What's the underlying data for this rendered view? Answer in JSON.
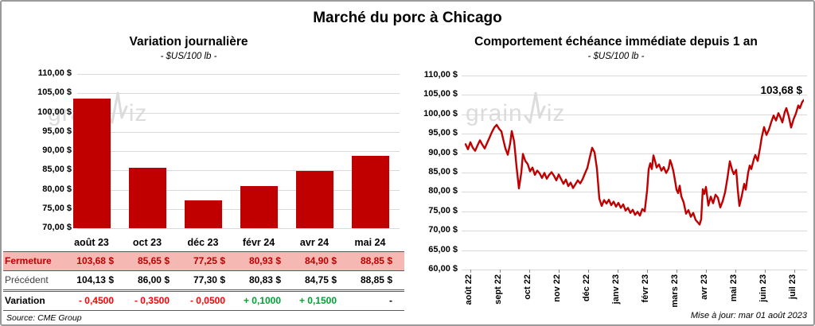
{
  "header": {
    "title": "Marché du porc à Chicago"
  },
  "watermark": {
    "prefix": "grain",
    "suffix": "iz"
  },
  "notes": {
    "source": "Source: CME Group",
    "updated": "Mise à jour: mar 01 août 2023"
  },
  "colors": {
    "series_red": "#C00000",
    "fermeture_text": "#C00000",
    "fermeture_bg": "#F6B8B2",
    "negative": "#FF0000",
    "positive": "#00A033",
    "gridline": "#D9D9D9",
    "rule": "#595959",
    "precedent_label": "#404040"
  },
  "chart_data": [
    {
      "type": "bar",
      "title": "Variation  journalière",
      "subtitle": "- $US/100 lb -",
      "unit": "$US/100 lb",
      "categories": [
        "août 23",
        "oct 23",
        "déc 23",
        "févr 24",
        "avr 24",
        "mai 24"
      ],
      "values": [
        103.68,
        85.65,
        77.25,
        80.93,
        84.9,
        88.85
      ],
      "ylim": [
        70,
        110
      ],
      "ytick_step": 5,
      "yticks": [
        "110,00 $",
        "105,00 $",
        "100,00 $",
        "95,00 $",
        "90,00 $",
        "85,00 $",
        "80,00 $",
        "75,00 $",
        "70,00 $"
      ],
      "grid": true,
      "legend": "none"
    },
    {
      "type": "line",
      "title": "Comportement  échéance immédiate depuis 1 an",
      "subtitle": "- $US/100 lb -",
      "unit": "$US/100 lb",
      "xticks": [
        "août 22",
        "sept 22",
        "oct 22",
        "nov 22",
        "déc 22",
        "janv 23",
        "févr 23",
        "mars 23",
        "avr 23",
        "mai 23",
        "juin 23",
        "juil 23"
      ],
      "ylim": [
        60,
        110
      ],
      "ytick_step": 5,
      "yticks": [
        "110,00 $",
        "105,00 $",
        "100,00 $",
        "95,00 $",
        "90,00 $",
        "85,00 $",
        "80,00 $",
        "75,00 $",
        "70,00 $",
        "65,00 $",
        "60,00 $"
      ],
      "grid": true,
      "legend": "none",
      "last_value": 103.68,
      "last_value_label": "103,68 $",
      "x_unit": "px offset from plot left; 430 px spans août 22 → juil 23",
      "points": [
        [
          5,
          92.3
        ],
        [
          8,
          91.0
        ],
        [
          11,
          92.8
        ],
        [
          14,
          91.4
        ],
        [
          17,
          90.6
        ],
        [
          20,
          92.0
        ],
        [
          23,
          93.3
        ],
        [
          26,
          92.2
        ],
        [
          29,
          91.2
        ],
        [
          32,
          92.6
        ],
        [
          35,
          94.0
        ],
        [
          38,
          95.4
        ],
        [
          41,
          96.6
        ],
        [
          44,
          97.3
        ],
        [
          47,
          96.3
        ],
        [
          50,
          95.6
        ],
        [
          52,
          93.8
        ],
        [
          55,
          91.2
        ],
        [
          58,
          89.6
        ],
        [
          61,
          92.5
        ],
        [
          63,
          95.7
        ],
        [
          66,
          93.0
        ],
        [
          69,
          86.5
        ],
        [
          72,
          80.9
        ],
        [
          75,
          85.0
        ],
        [
          77,
          89.8
        ],
        [
          80,
          88.0
        ],
        [
          83,
          87.2
        ],
        [
          86,
          85.3
        ],
        [
          89,
          86.3
        ],
        [
          92,
          84.4
        ],
        [
          95,
          85.5
        ],
        [
          98,
          84.8
        ],
        [
          101,
          83.6
        ],
        [
          104,
          84.9
        ],
        [
          107,
          83.4
        ],
        [
          110,
          84.4
        ],
        [
          113,
          85.1
        ],
        [
          116,
          84.2
        ],
        [
          119,
          83.0
        ],
        [
          122,
          84.5
        ],
        [
          125,
          83.3
        ],
        [
          128,
          82.1
        ],
        [
          131,
          83.2
        ],
        [
          134,
          81.5
        ],
        [
          137,
          82.4
        ],
        [
          140,
          81.0
        ],
        [
          143,
          82.0
        ],
        [
          146,
          83.0
        ],
        [
          149,
          82.2
        ],
        [
          152,
          83.3
        ],
        [
          155,
          84.8
        ],
        [
          158,
          86.2
        ],
        [
          161,
          88.9
        ],
        [
          164,
          91.4
        ],
        [
          167,
          90.2
        ],
        [
          170,
          86.0
        ],
        [
          173,
          78.3
        ],
        [
          176,
          76.4
        ],
        [
          179,
          77.9
        ],
        [
          182,
          77.0
        ],
        [
          185,
          78.0
        ],
        [
          188,
          76.6
        ],
        [
          191,
          77.5
        ],
        [
          194,
          76.2
        ],
        [
          197,
          77.2
        ],
        [
          200,
          75.9
        ],
        [
          203,
          76.8
        ],
        [
          206,
          75.2
        ],
        [
          209,
          75.9
        ],
        [
          212,
          74.6
        ],
        [
          215,
          75.4
        ],
        [
          218,
          74.1
        ],
        [
          221,
          74.9
        ],
        [
          224,
          73.9
        ],
        [
          227,
          75.6
        ],
        [
          230,
          75.0
        ],
        [
          233,
          80.3
        ],
        [
          235,
          85.8
        ],
        [
          237,
          87.4
        ],
        [
          239,
          85.9
        ],
        [
          241,
          89.4
        ],
        [
          243,
          88.0
        ],
        [
          245,
          86.3
        ],
        [
          248,
          87.1
        ],
        [
          251,
          85.5
        ],
        [
          254,
          86.4
        ],
        [
          257,
          84.9
        ],
        [
          260,
          86.0
        ],
        [
          262,
          88.2
        ],
        [
          264,
          87.0
        ],
        [
          266,
          85.4
        ],
        [
          268,
          83.1
        ],
        [
          270,
          80.6
        ],
        [
          272,
          79.7
        ],
        [
          274,
          81.6
        ],
        [
          276,
          78.9
        ],
        [
          279,
          77.3
        ],
        [
          282,
          74.4
        ],
        [
          285,
          75.3
        ],
        [
          288,
          73.6
        ],
        [
          291,
          74.6
        ],
        [
          294,
          72.8
        ],
        [
          297,
          72.1
        ],
        [
          299,
          71.6
        ],
        [
          301,
          73.0
        ],
        [
          303,
          80.7
        ],
        [
          305,
          79.5
        ],
        [
          307,
          81.3
        ],
        [
          310,
          76.5
        ],
        [
          313,
          78.8
        ],
        [
          316,
          77.1
        ],
        [
          319,
          79.3
        ],
        [
          322,
          78.5
        ],
        [
          325,
          76.0
        ],
        [
          328,
          77.6
        ],
        [
          331,
          79.9
        ],
        [
          334,
          83.6
        ],
        [
          337,
          87.9
        ],
        [
          340,
          85.6
        ],
        [
          342,
          84.6
        ],
        [
          345,
          85.7
        ],
        [
          347,
          80.5
        ],
        [
          349,
          76.4
        ],
        [
          352,
          79.0
        ],
        [
          355,
          82.1
        ],
        [
          357,
          80.6
        ],
        [
          360,
          85.0
        ],
        [
          362,
          86.8
        ],
        [
          364,
          85.9
        ],
        [
          367,
          88.3
        ],
        [
          369,
          89.5
        ],
        [
          372,
          88.0
        ],
        [
          375,
          91.4
        ],
        [
          377,
          94.0
        ],
        [
          380,
          96.7
        ],
        [
          383,
          94.7
        ],
        [
          386,
          96.0
        ],
        [
          389,
          98.0
        ],
        [
          392,
          99.7
        ],
        [
          395,
          98.4
        ],
        [
          398,
          100.3
        ],
        [
          401,
          99.0
        ],
        [
          403,
          97.9
        ],
        [
          406,
          100.6
        ],
        [
          408,
          101.6
        ],
        [
          411,
          99.5
        ],
        [
          414,
          96.6
        ],
        [
          417,
          98.7
        ],
        [
          420,
          100.2
        ],
        [
          423,
          102.3
        ],
        [
          425,
          101.6
        ],
        [
          428,
          103.2
        ],
        [
          430,
          103.68
        ]
      ]
    }
  ],
  "table": {
    "columns": [
      "août 23",
      "oct 23",
      "déc 23",
      "févr 24",
      "avr 24",
      "mai 24"
    ],
    "rows": [
      {
        "label": "Fermeture",
        "style": "fermeture",
        "values": [
          "103,68  $",
          "85,65  $",
          "77,25  $",
          "80,93  $",
          "84,90  $",
          "88,85  $"
        ]
      },
      {
        "label": "Précédent",
        "style": "precedent",
        "values": [
          "104,13  $",
          "86,00  $",
          "77,30  $",
          "80,83  $",
          "84,75  $",
          "88,85  $"
        ]
      },
      {
        "label": "Variation",
        "style": "variation",
        "values": [
          "- 0,4500",
          "- 0,3500",
          "- 0,0500",
          "+ 0,1000",
          "+ 0,1500",
          "-"
        ],
        "signs": [
          "neg",
          "neg",
          "neg",
          "pos",
          "pos",
          "none"
        ]
      }
    ]
  }
}
